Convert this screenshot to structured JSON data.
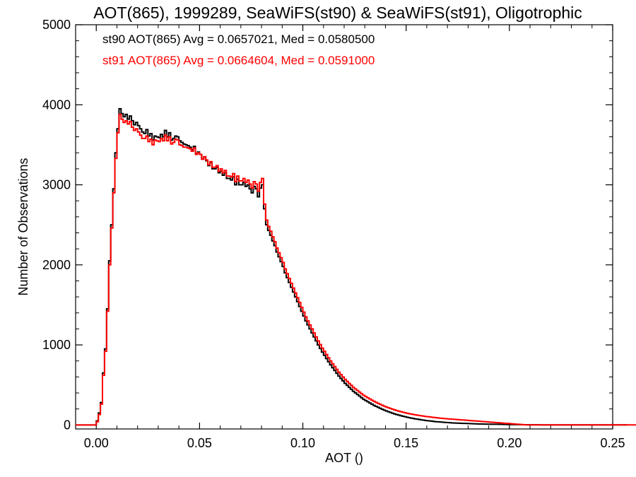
{
  "chart_data": {
    "type": "step-histogram",
    "title": "AOT(865), 1999289, SeaWiFS(st90) & SeaWiFS(st91), Oligotrophic",
    "xlabel": "AOT ()",
    "ylabel": "Number of Observations",
    "xlim": [
      -0.01,
      0.25
    ],
    "ylim": [
      -50,
      5000
    ],
    "x_ticks": [
      0.0,
      0.05,
      0.1,
      0.15,
      0.2,
      0.25
    ],
    "x_tick_labels": [
      "0.00",
      "0.05",
      "0.10",
      "0.15",
      "0.20",
      "0.25"
    ],
    "y_ticks": [
      0,
      1000,
      2000,
      3000,
      4000,
      5000
    ],
    "y_tick_labels": [
      "0",
      "1000",
      "2000",
      "3000",
      "4000",
      "5000"
    ],
    "legend_position": "top-left",
    "bin_width": 0.001,
    "x_start": -0.01,
    "series": [
      {
        "name": "st90",
        "legend_label": "st90 AOT(865) Avg = 0.0657021, Med = 0.0580500",
        "color": "#000000",
        "values": [
          0,
          0,
          0,
          0,
          0,
          0,
          0,
          0,
          0,
          0,
          50,
          150,
          280,
          650,
          950,
          1450,
          2050,
          2500,
          2950,
          3400,
          3700,
          3950,
          3890,
          3850,
          3880,
          3820,
          3860,
          3800,
          3750,
          3780,
          3740,
          3700,
          3660,
          3640,
          3690,
          3610,
          3640,
          3560,
          3610,
          3600,
          3590,
          3630,
          3600,
          3680,
          3600,
          3650,
          3560,
          3580,
          3610,
          3600,
          3550,
          3530,
          3510,
          3500,
          3490,
          3470,
          3440,
          3480,
          3390,
          3410,
          3380,
          3320,
          3350,
          3300,
          3240,
          3280,
          3200,
          3200,
          3220,
          3150,
          3170,
          3120,
          3150,
          3080,
          3080,
          3060,
          3100,
          3000,
          3070,
          3000,
          3000,
          3030,
          2980,
          3000,
          2950,
          2900,
          2980,
          2950,
          2850,
          2960,
          3000,
          2700,
          2500,
          2430,
          2370,
          2300,
          2240,
          2160,
          2100,
          2040,
          1980,
          1900,
          1840,
          1780,
          1720,
          1660,
          1600,
          1540,
          1480,
          1420,
          1360,
          1300,
          1250,
          1200,
          1150,
          1100,
          1050,
          1000,
          955,
          910,
          870,
          830,
          790,
          750,
          715,
          680,
          645,
          610,
          580,
          550,
          520,
          495,
          470,
          445,
          420,
          400,
          380,
          360,
          340,
          320,
          305,
          290,
          275,
          260,
          245,
          232,
          220,
          208,
          196,
          185,
          175,
          165,
          156,
          147,
          138,
          130,
          123,
          116,
          109,
          103,
          97,
          91,
          86,
          81,
          76,
          72,
          68,
          64,
          60,
          56,
          53,
          50,
          47,
          44,
          41,
          39,
          37,
          35,
          33,
          31,
          29,
          27,
          25,
          24,
          23,
          22,
          21,
          20,
          19,
          18,
          17,
          16,
          15,
          14,
          13,
          12,
          12,
          11,
          11,
          10,
          10,
          9,
          9,
          8,
          8,
          7,
          7,
          6,
          6,
          5,
          5,
          5,
          4,
          4,
          4,
          3,
          3,
          3,
          3,
          2,
          2,
          2,
          2,
          2,
          2,
          1,
          1,
          1,
          1,
          1,
          1,
          1,
          1,
          1,
          1,
          1,
          1,
          1,
          1,
          1,
          1,
          1,
          1,
          1,
          1,
          1,
          1,
          1,
          1,
          1,
          1,
          1,
          1,
          1,
          1,
          1,
          1,
          1,
          1,
          1,
          1,
          1,
          1,
          1,
          1,
          1,
          1
        ]
      },
      {
        "name": "st91",
        "legend_label": "st91 AOT(865) Avg = 0.0664604, Med = 0.0591000",
        "color": "#ff0000",
        "values": [
          0,
          0,
          0,
          0,
          0,
          0,
          0,
          0,
          0,
          0,
          40,
          130,
          260,
          620,
          920,
          1420,
          2000,
          2460,
          2900,
          3330,
          3650,
          3880,
          3820,
          3780,
          3800,
          3760,
          3790,
          3720,
          3680,
          3700,
          3660,
          3620,
          3580,
          3580,
          3610,
          3540,
          3570,
          3500,
          3560,
          3550,
          3540,
          3580,
          3550,
          3620,
          3550,
          3600,
          3510,
          3530,
          3570,
          3560,
          3500,
          3490,
          3470,
          3470,
          3460,
          3450,
          3420,
          3460,
          3380,
          3400,
          3380,
          3320,
          3350,
          3310,
          3250,
          3290,
          3220,
          3220,
          3240,
          3170,
          3200,
          3150,
          3180,
          3110,
          3110,
          3100,
          3140,
          3040,
          3110,
          3050,
          3050,
          3080,
          3030,
          3060,
          3010,
          2960,
          3040,
          3010,
          2920,
          3030,
          3080,
          2760,
          2560,
          2480,
          2420,
          2350,
          2290,
          2210,
          2150,
          2090,
          2030,
          1950,
          1890,
          1830,
          1770,
          1710,
          1650,
          1590,
          1530,
          1470,
          1410,
          1350,
          1300,
          1250,
          1200,
          1150,
          1100,
          1050,
          1005,
          960,
          920,
          880,
          840,
          800,
          765,
          730,
          695,
          660,
          630,
          600,
          570,
          545,
          520,
          495,
          470,
          450,
          430,
          410,
          390,
          370,
          355,
          340,
          325,
          310,
          295,
          282,
          270,
          258,
          246,
          235,
          225,
          215,
          206,
          197,
          188,
          180,
          173,
          166,
          159,
          153,
          147,
          141,
          136,
          131,
          126,
          122,
          118,
          114,
          110,
          106,
          103,
          100,
          97,
          94,
          91,
          88,
          85,
          82,
          80,
          78,
          76,
          74,
          72,
          70,
          68,
          66,
          64,
          62,
          60,
          58,
          56,
          54,
          52,
          50,
          48,
          46,
          44,
          42,
          40,
          38,
          36,
          34,
          32,
          30,
          28,
          26,
          24,
          22,
          20,
          18,
          16,
          14,
          12,
          10,
          8,
          6,
          4,
          2,
          1,
          1,
          1,
          1,
          1,
          1,
          1,
          1,
          1,
          1,
          1,
          1,
          1,
          1,
          1,
          1,
          1,
          1,
          1,
          1,
          1,
          1,
          1,
          1,
          1,
          1,
          1,
          1,
          1,
          1,
          1,
          1,
          1,
          1,
          1,
          1,
          1,
          1,
          1,
          1,
          1,
          1,
          1,
          1,
          1,
          1,
          1,
          1,
          1,
          1,
          1,
          1,
          1,
          1,
          1
        ]
      }
    ]
  }
}
